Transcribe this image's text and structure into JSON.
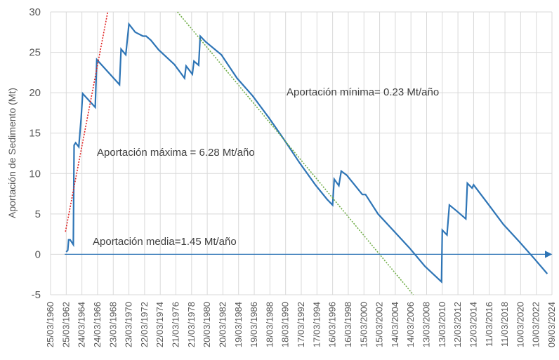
{
  "chart_data": {
    "type": "line",
    "y_label": "Aportación de Sedimento (Mt)",
    "xlim": [
      1960.2,
      2024.2
    ],
    "ylim": [
      -5,
      30
    ],
    "yticks": [
      -5,
      0,
      5,
      10,
      15,
      20,
      25,
      30
    ],
    "xticks": [
      {
        "value": 1960.2,
        "label": "25/03/1960"
      },
      {
        "value": 1962.2,
        "label": "25/03/1962"
      },
      {
        "value": 1964.2,
        "label": "24/03/1964"
      },
      {
        "value": 1966.2,
        "label": "24/03/1966"
      },
      {
        "value": 1968.2,
        "label": "23/03/1968"
      },
      {
        "value": 1970.2,
        "label": "23/03/1970"
      },
      {
        "value": 1972.2,
        "label": "22/03/1972"
      },
      {
        "value": 1974.2,
        "label": "22/03/1974"
      },
      {
        "value": 1976.2,
        "label": "21/03/1976"
      },
      {
        "value": 1978.2,
        "label": "21/03/1978"
      },
      {
        "value": 1980.2,
        "label": "20/03/1980"
      },
      {
        "value": 1982.2,
        "label": "20/03/1982"
      },
      {
        "value": 1984.2,
        "label": "19/03/1984"
      },
      {
        "value": 1986.2,
        "label": "19/03/1986"
      },
      {
        "value": 1988.2,
        "label": "18/03/1988"
      },
      {
        "value": 1990.2,
        "label": "18/03/1990"
      },
      {
        "value": 1992.2,
        "label": "17/03/1992"
      },
      {
        "value": 1994.2,
        "label": "17/03/1994"
      },
      {
        "value": 1996.2,
        "label": "16/03/1996"
      },
      {
        "value": 1998.2,
        "label": "16/03/1998"
      },
      {
        "value": 2000.2,
        "label": "15/03/2000"
      },
      {
        "value": 2002.2,
        "label": "15/03/2002"
      },
      {
        "value": 2004.2,
        "label": "14/03/2004"
      },
      {
        "value": 2006.2,
        "label": "14/03/2006"
      },
      {
        "value": 2008.2,
        "label": "13/03/2008"
      },
      {
        "value": 2010.2,
        "label": "13/03/2010"
      },
      {
        "value": 2012.2,
        "label": "12/03/2012"
      },
      {
        "value": 2014.2,
        "label": "12/03/2014"
      },
      {
        "value": 2016.2,
        "label": "11/03/2016"
      },
      {
        "value": 2018.2,
        "label": "11/03/2018"
      },
      {
        "value": 2020.2,
        "label": "10/03/2020"
      },
      {
        "value": 2022.2,
        "label": "10/03/2022"
      },
      {
        "value": 2024.2,
        "label": "09/03/2024"
      }
    ],
    "grid": true,
    "series": [
      {
        "color": "#2e75b6",
        "style": "solid",
        "x": [
          1962.2,
          1962.4,
          1962.5,
          1962.7,
          1963.1,
          1963.2,
          1963.4,
          1963.8,
          1964.1,
          1964.3,
          1965.9,
          1966.1,
          1969.0,
          1969.2,
          1969.8,
          1970.2,
          1971.0,
          1972.0,
          1972.4,
          1973.0,
          1974.0,
          1976.0,
          1977.3,
          1977.5,
          1978.3,
          1978.5,
          1979.1,
          1979.3,
          1980.0,
          1982.0,
          1984.0,
          1986.0,
          1988.0,
          1990.0,
          1992.0,
          1994.0,
          1995.5,
          1996.2,
          1996.4,
          1997.0,
          1997.3,
          1998.0,
          2000.0,
          2000.4,
          2002.0,
          2004.0,
          2006.0,
          2008.0,
          2010.1,
          2010.2,
          2010.8,
          2011.1,
          2012.0,
          2013.2,
          2013.4,
          2014.0,
          2014.2,
          2016.0,
          2018.0,
          2020.0,
          2022.0,
          2023.6
        ],
        "values": [
          0.3,
          0.5,
          1.8,
          1.8,
          1.2,
          13.5,
          13.8,
          13.3,
          16.8,
          19.9,
          18.2,
          24.1,
          21.0,
          25.4,
          24.7,
          28.5,
          27.5,
          27.0,
          27.0,
          26.5,
          25.3,
          23.5,
          21.8,
          23.3,
          22.3,
          23.9,
          23.4,
          27.0,
          26.3,
          24.7,
          21.8,
          19.6,
          17.0,
          14.2,
          11.3,
          8.6,
          6.8,
          6.1,
          9.3,
          8.5,
          10.3,
          9.8,
          7.4,
          7.4,
          5.0,
          2.9,
          0.8,
          -1.5,
          -3.4,
          3.0,
          2.4,
          6.1,
          5.4,
          4.4,
          8.8,
          8.2,
          8.6,
          6.3,
          3.7,
          1.6,
          -0.6,
          -2.4
        ]
      },
      {
        "color": "#e02020",
        "style": "dotted",
        "x": [
          1962.1,
          1967.5
        ],
        "values": [
          2.8,
          30
        ]
      },
      {
        "color": "#70ad47",
        "style": "dotted",
        "x": [
          1976.4,
          2006.5
        ],
        "values": [
          30,
          -5
        ]
      },
      {
        "color": "#2e75b6",
        "style": "arrow",
        "x": [
          1962.0,
          2024.0
        ],
        "values": [
          0,
          0
        ]
      }
    ],
    "annotations": [
      "Aportación mínima= 0.23 Mt/año",
      "Aportación máxima = 6.28 Mt/año",
      "Aportación media=1.45 Mt/año"
    ]
  }
}
